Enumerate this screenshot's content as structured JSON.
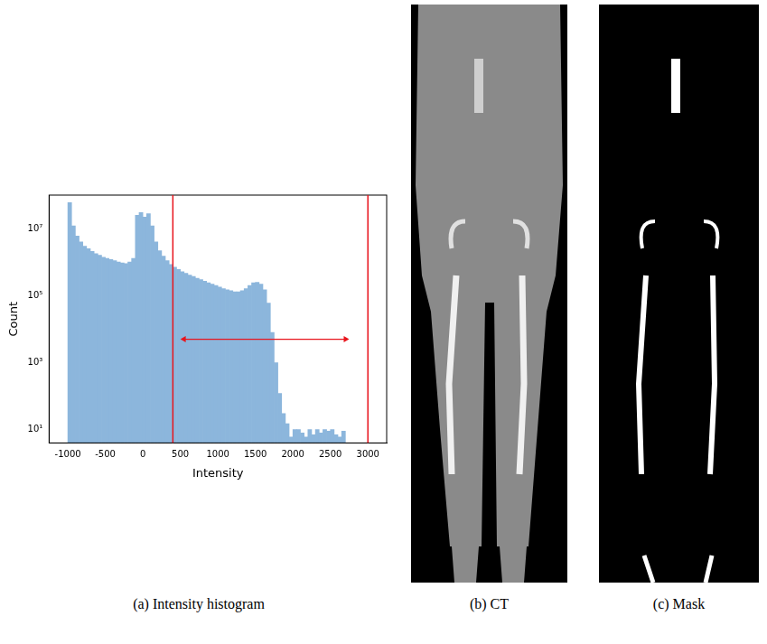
{
  "chart_data": {
    "type": "histogram",
    "x_label": "Intensity",
    "y_label": "Count",
    "bins": [
      -1000,
      -950,
      -900,
      -850,
      -800,
      -750,
      -700,
      -650,
      -600,
      -550,
      -500,
      -450,
      -400,
      -350,
      -300,
      -250,
      -200,
      -150,
      -100,
      -50,
      0,
      50,
      100,
      150,
      200,
      250,
      300,
      350,
      400,
      450,
      500,
      550,
      600,
      650,
      700,
      750,
      800,
      850,
      900,
      950,
      1000,
      1050,
      1100,
      1150,
      1200,
      1250,
      1300,
      1350,
      1400,
      1450,
      1500,
      1550,
      1600,
      1650,
      1700,
      1750,
      1800,
      1850,
      1900,
      1950,
      2000,
      2050,
      2100,
      2150,
      2200,
      2250,
      2300,
      2350,
      2400,
      2450,
      2500,
      2550,
      2600,
      2650,
      2700
    ],
    "counts": [
      60000000,
      12000000,
      6000000,
      4000000,
      3000000,
      2500000,
      2100000,
      1800000,
      1600000,
      1400000,
      1300000,
      1200000,
      1100000,
      1000000,
      950000,
      900000,
      1000000,
      1300000,
      25000000,
      30000000,
      22000000,
      28000000,
      12000000,
      4000000,
      2200000,
      1500000,
      1100000,
      850000,
      700000,
      600000,
      520000,
      460000,
      410000,
      370000,
      330000,
      300000,
      270000,
      240000,
      220000,
      200000,
      180000,
      160000,
      150000,
      140000,
      130000,
      130000,
      140000,
      160000,
      200000,
      240000,
      250000,
      220000,
      150000,
      60000,
      8000,
      1000,
      120,
      30,
      15,
      6,
      10,
      10,
      8,
      6,
      10,
      7,
      10,
      8,
      10,
      9,
      10,
      7,
      6,
      9
    ],
    "color": "#8cb6dc",
    "xlim": [
      -1250,
      3250
    ],
    "xticks": [
      -1000,
      -500,
      0,
      500,
      1000,
      1500,
      2000,
      2500,
      3000
    ],
    "ylim": [
      4,
      100000000
    ],
    "yticks": [
      {
        "value": 10,
        "label": "10¹"
      },
      {
        "value": 1000,
        "label": "10³"
      },
      {
        "value": 100000,
        "label": "10⁵"
      },
      {
        "value": 10000000,
        "label": "10⁷"
      }
    ],
    "log": "y",
    "grid": false,
    "lines": {
      "x": [
        400,
        3000
      ],
      "color": "#e8141c"
    },
    "arrow": {
      "x": [
        500,
        2750
      ],
      "y": 5000,
      "color": "#e8141c"
    }
  },
  "captions": [
    "(a) Intensity histogram",
    "(b) CT",
    "(c) Mask"
  ]
}
